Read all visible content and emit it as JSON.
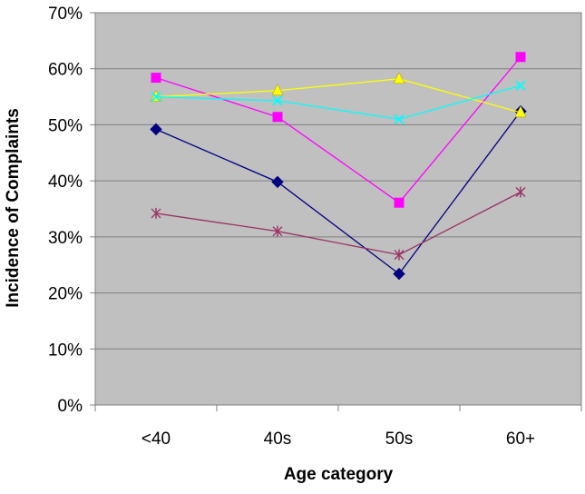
{
  "chart_data": {
    "type": "line",
    "title": "",
    "xlabel": "Age category",
    "ylabel": "Incidence of Complaints",
    "categories": [
      "<40",
      "40s",
      "50s",
      "60+"
    ],
    "ylim": [
      0,
      70
    ],
    "yticks": [
      0,
      10,
      20,
      30,
      40,
      50,
      60,
      70
    ],
    "ytick_labels": [
      "0%",
      "10%",
      "20%",
      "30%",
      "40%",
      "50%",
      "60%",
      "70%"
    ],
    "grid": "horizontal",
    "legend": "none",
    "plot_background": "#c0c0c0",
    "series": [
      {
        "color": "#000080",
        "marker": "diamond",
        "values": [
          49.2,
          39.8,
          23.4,
          52.4
        ]
      },
      {
        "color": "#ff00ff",
        "marker": "square",
        "values": [
          58.4,
          51.4,
          36.1,
          62.1
        ]
      },
      {
        "color": "#ffff00",
        "marker": "triangle",
        "values": [
          55.0,
          56.1,
          58.2,
          52.2
        ]
      },
      {
        "color": "#00ffff",
        "marker": "x",
        "values": [
          55.0,
          54.3,
          51.0,
          57.0
        ]
      },
      {
        "color": "#993366",
        "marker": "star",
        "values": [
          34.2,
          31.0,
          26.8,
          38.0
        ]
      }
    ]
  }
}
